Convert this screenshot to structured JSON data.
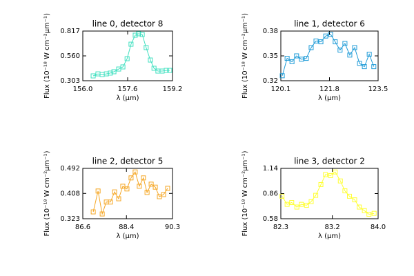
{
  "chart_data": [
    {
      "type": "line",
      "title": "line 0, detector 8",
      "xlabel": "λ (μm)",
      "ylabel": "Flux (10⁻¹⁸ W cm⁻²μm⁻¹)",
      "x": [
        156.37,
        156.54,
        156.69,
        156.84,
        156.98,
        157.11,
        157.28,
        157.43,
        157.58,
        157.72,
        157.87,
        157.99,
        158.12,
        158.26,
        158.41,
        158.54,
        158.68,
        158.83,
        158.98,
        159.1
      ],
      "series": [
        {
          "color": "#40e0c0",
          "values": [
            0.353,
            0.374,
            0.367,
            0.374,
            0.382,
            0.396,
            0.424,
            0.446,
            0.531,
            0.681,
            0.774,
            0.789,
            0.781,
            0.646,
            0.517,
            0.432,
            0.403,
            0.403,
            0.41,
            0.41
          ]
        }
      ],
      "xlim": [
        156.0,
        159.2
      ],
      "xticks": [
        {
          "value": 156.0,
          "label": "156.0"
        },
        157.6,
        159.2
      ],
      "ylim": [
        0.303,
        0.817
      ],
      "yticks": [
        0.303,
        {
          "value": 0.56,
          "label": "0.560"
        },
        0.817
      ]
    },
    {
      "type": "line",
      "title": "line 1, detector 6",
      "xlabel": "λ (μm)",
      "ylabel": "Flux (10⁻¹⁸ W cm⁻²μm⁻¹)",
      "x": [
        120.15,
        120.32,
        120.49,
        120.65,
        120.82,
        120.99,
        121.16,
        121.33,
        121.5,
        121.67,
        121.84,
        122.0,
        122.17,
        122.34,
        122.51,
        122.68,
        122.85,
        123.02,
        123.19,
        123.35
      ],
      "series": [
        {
          "color": "#1e9bd7",
          "values": [
            0.326,
            0.347,
            0.343,
            0.35,
            0.346,
            0.347,
            0.36,
            0.368,
            0.367,
            0.374,
            0.376,
            0.367,
            0.357,
            0.365,
            0.351,
            0.36,
            0.341,
            0.337,
            0.352,
            0.337
          ]
        }
      ],
      "xlim": [
        120.1,
        123.5
      ],
      "xticks": [
        120.1,
        121.8,
        123.5
      ],
      "ylim": [
        0.32,
        0.38
      ],
      "yticks": [
        0.32,
        0.35,
        0.38
      ]
    },
    {
      "type": "line",
      "title": "line 2, detector 5",
      "xlabel": "λ (μm)",
      "ylabel": "Flux (10⁻¹⁸ W cm⁻²μm⁻¹)",
      "x": [
        87.03,
        87.23,
        87.4,
        87.57,
        87.74,
        87.91,
        88.08,
        88.25,
        88.42,
        88.59,
        88.76,
        88.93,
        89.1,
        89.25,
        89.42,
        89.59,
        89.76,
        89.93,
        90.1
      ],
      "series": [
        {
          "color": "#f5a623",
          "values": [
            0.346,
            0.416,
            0.339,
            0.379,
            0.379,
            0.413,
            0.39,
            0.432,
            0.423,
            0.46,
            0.48,
            0.432,
            0.46,
            0.411,
            0.439,
            0.429,
            0.397,
            0.404,
            0.425
          ]
        }
      ],
      "xlim": [
        86.6,
        90.3
      ],
      "xticks": [
        86.6,
        88.4,
        90.3
      ],
      "ylim": [
        0.323,
        0.492
      ],
      "yticks": [
        0.323,
        0.408,
        0.492
      ]
    },
    {
      "type": "line",
      "title": "line 3, detector 2",
      "xlabel": "λ (μm)",
      "ylabel": "Flux (10⁻¹⁸ W cm⁻²μm⁻¹)",
      "x": [
        82.32,
        82.41,
        82.49,
        82.58,
        82.66,
        82.75,
        82.83,
        82.91,
        83.0,
        83.08,
        83.17,
        83.25,
        83.34,
        83.42,
        83.5,
        83.59,
        83.67,
        83.76,
        83.84,
        83.93
      ],
      "series": [
        {
          "color": "#ffff33",
          "values": [
            0.83,
            0.74,
            0.76,
            0.71,
            0.74,
            0.73,
            0.77,
            0.84,
            0.96,
            1.07,
            1.06,
            1.1,
            1.0,
            0.89,
            0.83,
            0.79,
            0.71,
            0.67,
            0.63,
            0.64
          ]
        }
      ],
      "xlim": [
        82.3,
        84.0
      ],
      "xticks": [
        82.3,
        83.2,
        {
          "value": 84.0,
          "label": "84.0"
        }
      ],
      "ylim": [
        0.58,
        1.14
      ],
      "yticks": [
        0.58,
        0.86,
        1.14
      ]
    }
  ]
}
